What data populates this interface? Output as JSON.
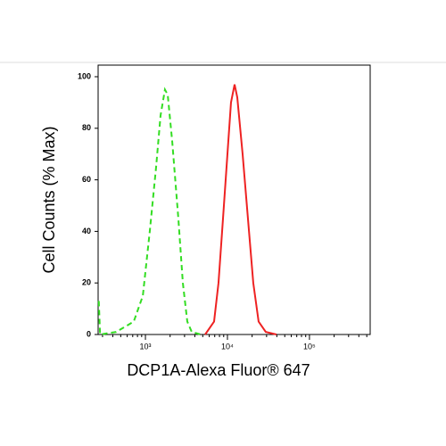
{
  "chart_data": {
    "type": "line",
    "x_label": "DCP1A-Alexa Fluor® 647",
    "y_label": "Cell Counts (% Max)",
    "xscale": "log",
    "xlim": [
      265,
      550000
    ],
    "ylim": [
      0,
      104.5
    ],
    "xticks": [
      {
        "value": 1000,
        "label": "10³"
      },
      {
        "value": 10000,
        "label": "10⁴"
      },
      {
        "value": 100000,
        "label": "10⁵"
      }
    ],
    "xminorticks": [
      300,
      400,
      500,
      600,
      700,
      800,
      900,
      2000,
      3000,
      4000,
      5000,
      6000,
      7000,
      8000,
      9000,
      20000,
      30000,
      40000,
      50000,
      60000,
      70000,
      80000,
      90000,
      200000,
      300000,
      400000,
      500000
    ],
    "yticks": [
      0,
      20,
      40,
      60,
      80,
      100
    ],
    "series": [
      {
        "color": "#33dd22",
        "dash": true,
        "x": [
          270,
          280,
          440,
          720,
          930,
          1130,
          1350,
          1530,
          1730,
          1870,
          2120,
          2520,
          2860,
          3240,
          3670,
          4720
        ],
        "values": [
          13,
          0,
          1,
          5,
          15,
          40,
          65,
          85,
          95,
          93,
          75,
          45,
          20,
          5,
          1,
          0
        ]
      },
      {
        "color": "#ee2222",
        "dash": false,
        "x": [
          5350,
          6870,
          7780,
          8830,
          10000,
          11050,
          12220,
          13180,
          15310,
          17780,
          20650,
          23990,
          29310,
          39630
        ],
        "values": [
          0,
          5,
          20,
          45,
          70,
          90,
          97,
          92,
          70,
          45,
          20,
          5,
          1,
          0
        ]
      }
    ]
  }
}
